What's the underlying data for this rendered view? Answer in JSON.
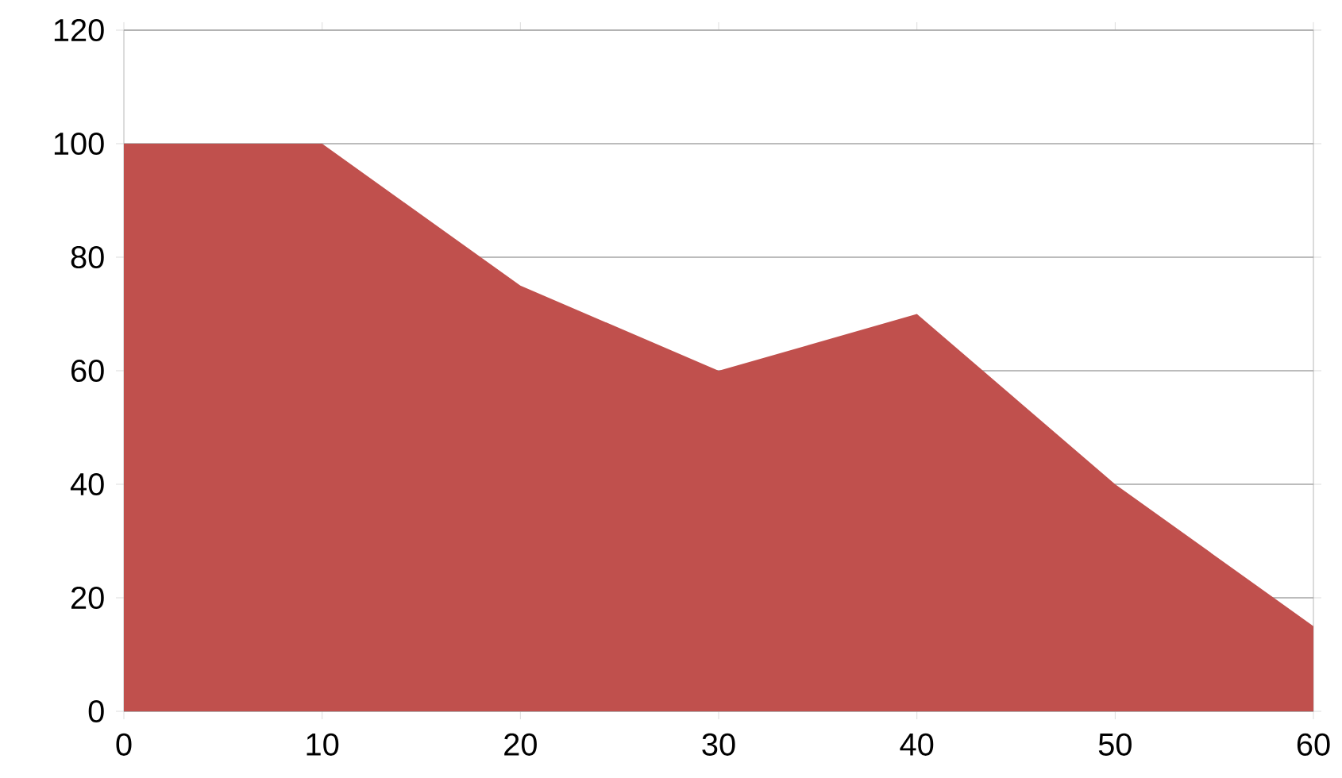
{
  "chart_data": {
    "type": "area",
    "x": [
      0,
      10,
      20,
      30,
      40,
      50,
      60
    ],
    "values": [
      100,
      100,
      75,
      60,
      70,
      40,
      15
    ],
    "color": "#c0504d",
    "xlim": [
      0,
      60
    ],
    "xticks": [
      0,
      10,
      20,
      30,
      40,
      50,
      60
    ],
    "ylim": [
      0,
      120
    ],
    "yticks": [
      0,
      20,
      40,
      60,
      80,
      100,
      120
    ],
    "grid": "y"
  }
}
